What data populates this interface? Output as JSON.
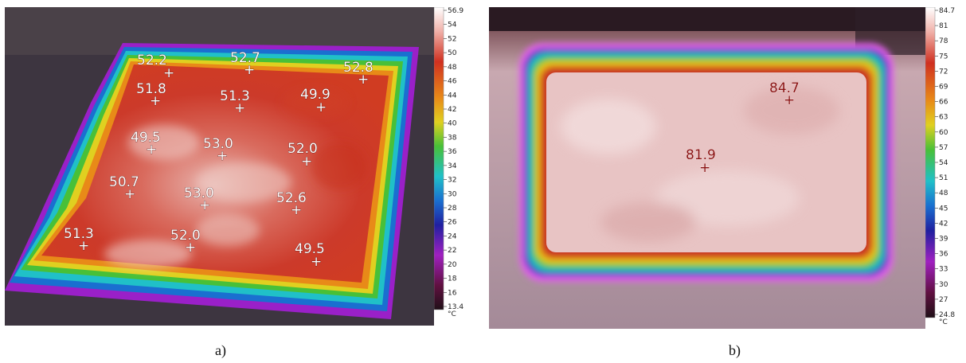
{
  "panel_a": {
    "caption": "a)",
    "unit": "°C",
    "scale_ticks": [
      "56.9",
      "54",
      "52",
      "50",
      "48",
      "46",
      "44",
      "42",
      "40",
      "38",
      "36",
      "34",
      "32",
      "30",
      "28",
      "26",
      "24",
      "22",
      "20",
      "18",
      "16",
      "13.4"
    ],
    "points": [
      {
        "label": "52.2"
      },
      {
        "label": "52.7"
      },
      {
        "label": "52.8"
      },
      {
        "label": "51.8"
      },
      {
        "label": "51.3"
      },
      {
        "label": "49.9"
      },
      {
        "label": "49.5"
      },
      {
        "label": "53.0"
      },
      {
        "label": "52.0"
      },
      {
        "label": "50.7"
      },
      {
        "label": "53.0"
      },
      {
        "label": "52.6"
      },
      {
        "label": "51.3"
      },
      {
        "label": "52.0"
      },
      {
        "label": "49.5"
      }
    ]
  },
  "panel_b": {
    "caption": "b)",
    "unit": "°C",
    "scale_ticks": [
      "84.7",
      "81",
      "78",
      "75",
      "72",
      "69",
      "66",
      "63",
      "60",
      "57",
      "54",
      "51",
      "48",
      "45",
      "42",
      "39",
      "36",
      "33",
      "30",
      "27",
      "24.8"
    ],
    "points": [
      {
        "label": "84.7"
      },
      {
        "label": "81.9"
      }
    ]
  }
}
